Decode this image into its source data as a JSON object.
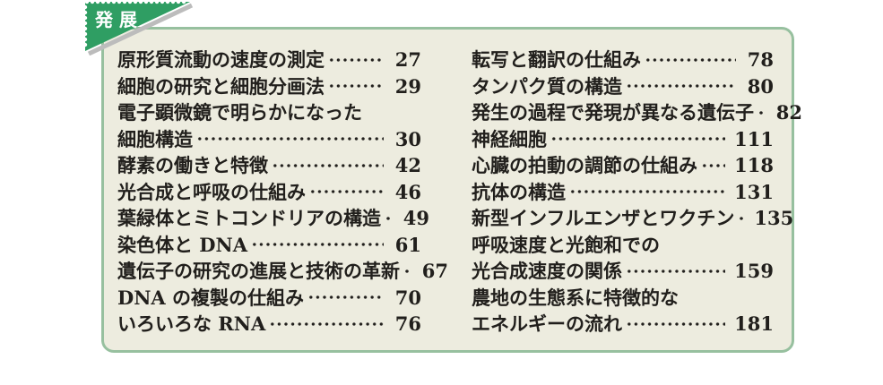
{
  "tag": {
    "label": "発展"
  },
  "colors": {
    "page_bg": "#ffffff",
    "panel_bg": "#edecdf",
    "panel_border": "#97c09f",
    "text": "#211f1c",
    "tag_bg": "#2f9e63",
    "tag_text": "#ffffff",
    "tag_shadow": "#bcbcbc"
  },
  "toc": {
    "columns": [
      {
        "items": [
          {
            "text": "原形質流動の速度の測定",
            "page": "27"
          },
          {
            "text": "細胞の研究と細胞分画法",
            "page": "29"
          },
          {
            "text": "電子顕微鏡で明らかになった",
            "page": ""
          },
          {
            "text": "細胞構造",
            "page": "30"
          },
          {
            "text": "酵素の働きと特徴",
            "page": "42"
          },
          {
            "text": "光合成と呼吸の仕組み",
            "page": "46"
          },
          {
            "text": "葉緑体とミトコンドリアの構造",
            "page": "49"
          },
          {
            "text": "染色体と DNA",
            "page": "61"
          },
          {
            "text": "遺伝子の研究の進展と技術の革新",
            "page": "67"
          },
          {
            "text": "DNA の複製の仕組み",
            "page": "70"
          },
          {
            "text": "いろいろな RNA",
            "page": "76"
          }
        ]
      },
      {
        "items": [
          {
            "text": "転写と翻訳の仕組み",
            "page": "78"
          },
          {
            "text": "タンパク質の構造",
            "page": "80"
          },
          {
            "text": "発生の過程で発現が異なる遺伝子",
            "page": "82"
          },
          {
            "text": "神経細胞",
            "page": "111"
          },
          {
            "text": "心臓の拍動の調節の仕組み",
            "page": "118"
          },
          {
            "text": "抗体の構造",
            "page": "131"
          },
          {
            "text": "新型インフルエンザとワクチン",
            "page": "135"
          },
          {
            "text": "呼吸速度と光飽和での",
            "page": ""
          },
          {
            "text": "光合成速度の関係",
            "page": "159"
          },
          {
            "text": "農地の生態系に特徴的な",
            "page": ""
          },
          {
            "text": "エネルギーの流れ",
            "page": "181"
          }
        ]
      }
    ]
  }
}
